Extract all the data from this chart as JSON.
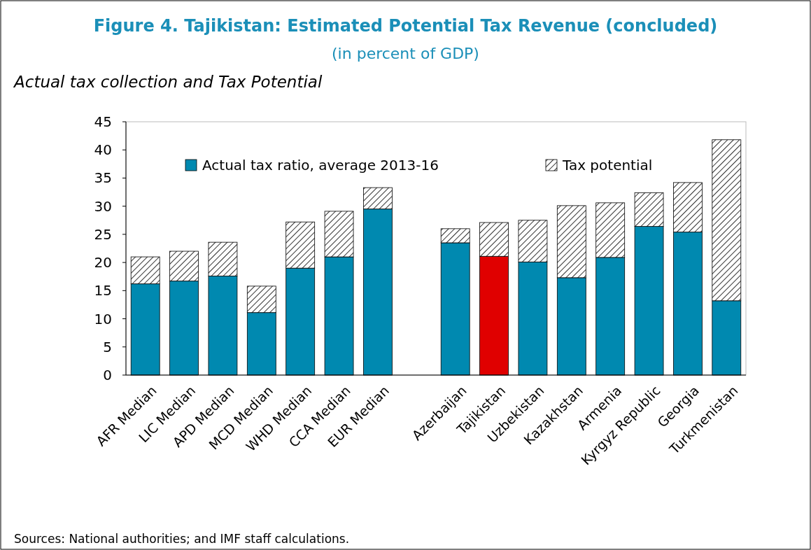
{
  "chart_data": {
    "type": "bar",
    "title": "Figure 4. Tajikistan: Estimated Potential Tax Revenue (concluded)",
    "subtitle": "(in percent of GDP)",
    "annotations": [
      "Actual tax collection and Tax Potential",
      "Sources: National authorities; and IMF staff calculations."
    ],
    "categories": [
      "AFR Median",
      "LIC Median",
      "APD Median",
      "MCD Median",
      "WHD Median",
      "CCA Median",
      "EUR Median",
      null,
      "Azerbaijan",
      "Tajikistan",
      "Uzbekistan",
      "Kazakhstan",
      "Armenia",
      "Kyrgyz Republic",
      "Georgia",
      "Turkmenistan"
    ],
    "stacked": true,
    "series": [
      {
        "name": "Actual tax ratio, average 2013-16",
        "color": "#0089b0",
        "colors": [
          "#0089b0",
          "#0089b0",
          "#0089b0",
          "#0089b0",
          "#0089b0",
          "#0089b0",
          "#0089b0",
          null,
          "#0089b0",
          "#e00000",
          "#0089b0",
          "#0089b0",
          "#0089b0",
          "#0089b0",
          "#0089b0",
          "#0089b0"
        ],
        "values": [
          16.2,
          16.7,
          17.6,
          11.1,
          19.0,
          21.0,
          29.5,
          null,
          23.5,
          21.1,
          20.1,
          17.3,
          20.9,
          26.4,
          25.4,
          13.2
        ]
      },
      {
        "name": "Tax potential",
        "color": "#000000",
        "values": [
          4.8,
          5.3,
          6.0,
          4.7,
          8.2,
          8.1,
          3.8,
          null,
          2.5,
          6.0,
          7.4,
          12.8,
          9.7,
          6.0,
          8.8,
          28.6
        ]
      }
    ],
    "ylim": [
      0,
      45
    ],
    "yticks": [
      0,
      5,
      10,
      15,
      20,
      25,
      30,
      35,
      40,
      45
    ],
    "grid": false,
    "legend": "top"
  }
}
